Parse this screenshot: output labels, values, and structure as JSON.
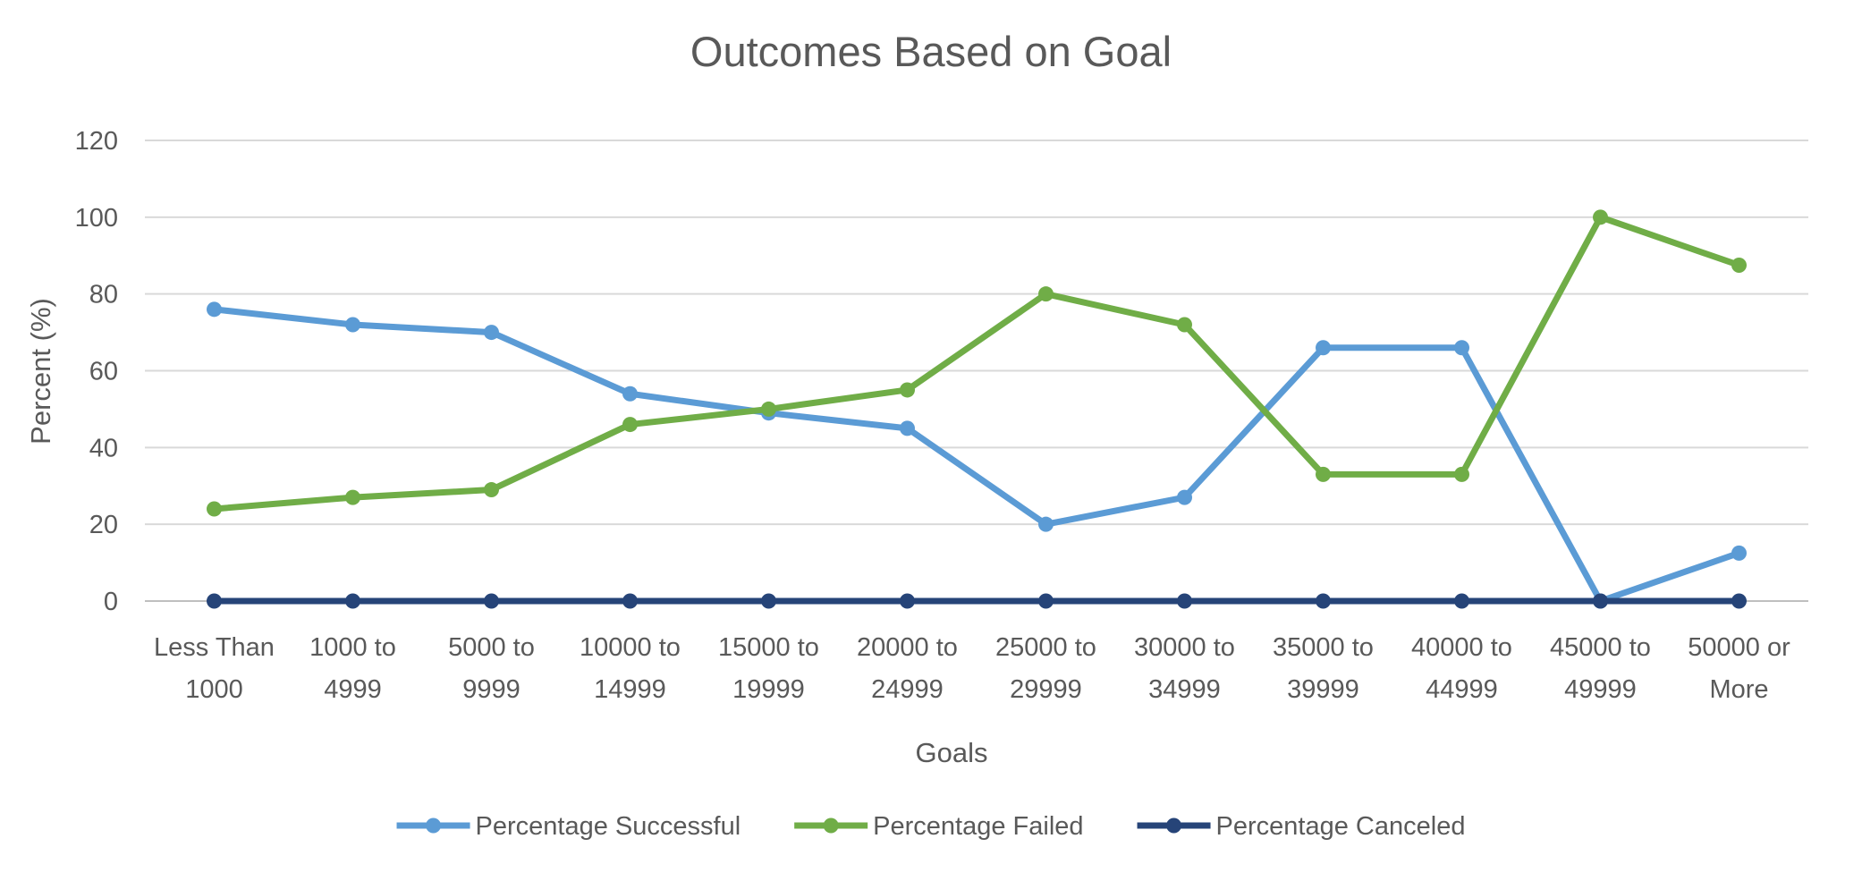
{
  "chart_data": {
    "type": "line",
    "title": "Outcomes Based on Goal",
    "xlabel": "Goals",
    "ylabel": "Percent (%)",
    "ylim": [
      0,
      120
    ],
    "yticks": [
      0,
      20,
      40,
      60,
      80,
      100,
      120
    ],
    "grid": true,
    "legend_position": "bottom",
    "categories": [
      [
        "Less Than",
        "1000"
      ],
      [
        "1000 to",
        "4999"
      ],
      [
        "5000 to",
        "9999"
      ],
      [
        "10000 to",
        "14999"
      ],
      [
        "15000 to",
        "19999"
      ],
      [
        "20000 to",
        "24999"
      ],
      [
        "25000 to",
        "29999"
      ],
      [
        "30000 to",
        "34999"
      ],
      [
        "35000 to",
        "39999"
      ],
      [
        "40000 to",
        "44999"
      ],
      [
        "45000 to",
        "49999"
      ],
      [
        "50000 or",
        "More"
      ]
    ],
    "series": [
      {
        "name": "Percentage Successful",
        "color": "#5b9bd5",
        "values": [
          76,
          72,
          70,
          54,
          49,
          45,
          20,
          27,
          66,
          66,
          0,
          12.5
        ]
      },
      {
        "name": "Percentage Failed",
        "color": "#70ad47",
        "values": [
          24,
          27,
          29,
          46,
          50,
          55,
          80,
          72,
          33,
          33,
          100,
          87.5
        ]
      },
      {
        "name": "Percentage Canceled",
        "color": "#264478",
        "values": [
          0,
          0,
          0,
          0,
          0,
          0,
          0,
          0,
          0,
          0,
          0,
          0
        ]
      }
    ]
  }
}
